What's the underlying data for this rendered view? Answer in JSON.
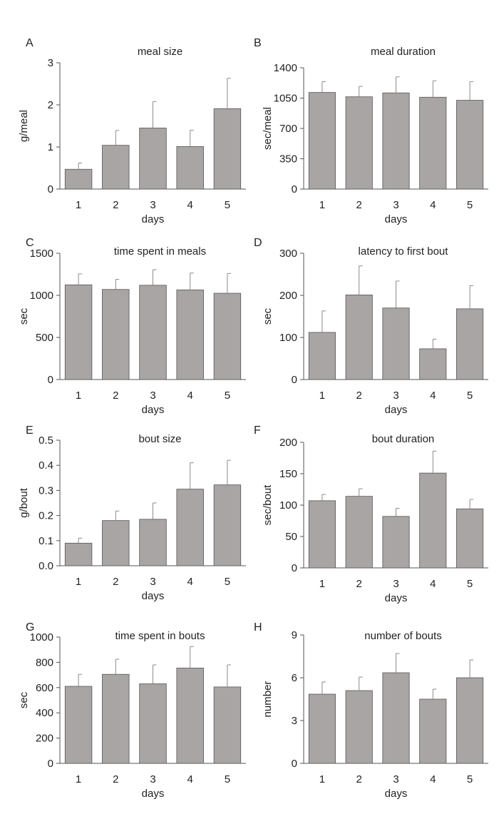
{
  "chart_data": [
    {
      "panel": "A",
      "type": "bar",
      "title": "meal size",
      "categories": [
        "1",
        "2",
        "3",
        "4",
        "5"
      ],
      "values": [
        0.47,
        1.04,
        1.45,
        1.01,
        1.91
      ],
      "errors": [
        0.15,
        0.35,
        0.63,
        0.39,
        0.72
      ],
      "ylabel": "g/meal",
      "xlabel": "days",
      "ylim": [
        0,
        3
      ],
      "yticks": [
        0,
        1,
        2,
        3
      ],
      "ytick_labels": [
        "0",
        "1",
        "2",
        "3"
      ]
    },
    {
      "panel": "B",
      "type": "bar",
      "title": "meal duration",
      "categories": [
        "1",
        "2",
        "3",
        "4",
        "5"
      ],
      "values": [
        1115,
        1065,
        1110,
        1060,
        1025
      ],
      "errors": [
        125,
        120,
        185,
        190,
        215
      ],
      "ylabel": "sec/meal",
      "xlabel": "days",
      "ylim": [
        0,
        1400
      ],
      "yticks": [
        0,
        350,
        700,
        1050,
        1400
      ],
      "ytick_labels": [
        "0",
        "350",
        "700",
        "1050",
        "1400"
      ]
    },
    {
      "panel": "C",
      "type": "bar",
      "title": "time spent in meals",
      "categories": [
        "1",
        "2",
        "3",
        "4",
        "5"
      ],
      "values": [
        1125,
        1070,
        1120,
        1065,
        1025
      ],
      "errors": [
        130,
        120,
        185,
        200,
        235
      ],
      "ylabel": "sec",
      "xlabel": "days",
      "ylim": [
        0,
        1500
      ],
      "yticks": [
        0,
        500,
        1000,
        1500
      ],
      "ytick_labels": [
        "0",
        "500",
        "1000",
        "1500"
      ]
    },
    {
      "panel": "D",
      "type": "bar",
      "title": "latency to first bout",
      "categories": [
        "1",
        "2",
        "3",
        "4",
        "5"
      ],
      "values": [
        112,
        201,
        170,
        73,
        168
      ],
      "errors": [
        51,
        69,
        64,
        23,
        55
      ],
      "ylabel": "sec",
      "xlabel": "days",
      "ylim": [
        0,
        300
      ],
      "yticks": [
        0,
        100,
        200,
        300
      ],
      "ytick_labels": [
        "0",
        "100",
        "200",
        "300"
      ]
    },
    {
      "panel": "E",
      "type": "bar",
      "title": "bout size",
      "categories": [
        "1",
        "2",
        "3",
        "4",
        "5"
      ],
      "values": [
        0.09,
        0.18,
        0.185,
        0.305,
        0.322
      ],
      "errors": [
        0.02,
        0.038,
        0.065,
        0.105,
        0.098
      ],
      "ylabel": "g/bout",
      "xlabel": "days",
      "ylim": [
        0,
        0.5
      ],
      "yticks": [
        0,
        0.1,
        0.2,
        0.3,
        0.4,
        0.5
      ],
      "ytick_labels": [
        "0.0",
        "0.1",
        "0.2",
        "0.3",
        "0.4",
        "0.5"
      ]
    },
    {
      "panel": "F",
      "type": "bar",
      "title": "bout duration",
      "categories": [
        "1",
        "2",
        "3",
        "4",
        "5"
      ],
      "values": [
        107,
        114,
        82,
        151,
        94
      ],
      "errors": [
        10,
        12,
        13,
        35,
        15
      ],
      "ylabel": "sec/bout",
      "xlabel": "days",
      "ylim": [
        0,
        200
      ],
      "yticks": [
        0,
        50,
        100,
        150,
        200
      ],
      "ytick_labels": [
        "0",
        "50",
        "100",
        "150",
        "200"
      ]
    },
    {
      "panel": "G",
      "type": "bar",
      "title": "time spent in bouts",
      "categories": [
        "1",
        "2",
        "3",
        "4",
        "5"
      ],
      "values": [
        610,
        705,
        630,
        755,
        605
      ],
      "errors": [
        95,
        120,
        150,
        170,
        175
      ],
      "ylabel": "sec",
      "xlabel": "days",
      "ylim": [
        0,
        1000
      ],
      "yticks": [
        0,
        200,
        400,
        600,
        800,
        1000
      ],
      "ytick_labels": [
        "0",
        "200",
        "400",
        "600",
        "800",
        "1000"
      ]
    },
    {
      "panel": "H",
      "type": "bar",
      "title": "number of bouts",
      "categories": [
        "1",
        "2",
        "3",
        "4",
        "5"
      ],
      "values": [
        4.85,
        5.1,
        6.35,
        4.5,
        6.0
      ],
      "errors": [
        0.85,
        0.95,
        1.35,
        0.7,
        1.25
      ],
      "ylabel": "number",
      "xlabel": "days",
      "ylim": [
        0,
        9
      ],
      "yticks": [
        0,
        3,
        6,
        9
      ],
      "ytick_labels": [
        "0",
        "3",
        "6",
        "9"
      ]
    }
  ]
}
